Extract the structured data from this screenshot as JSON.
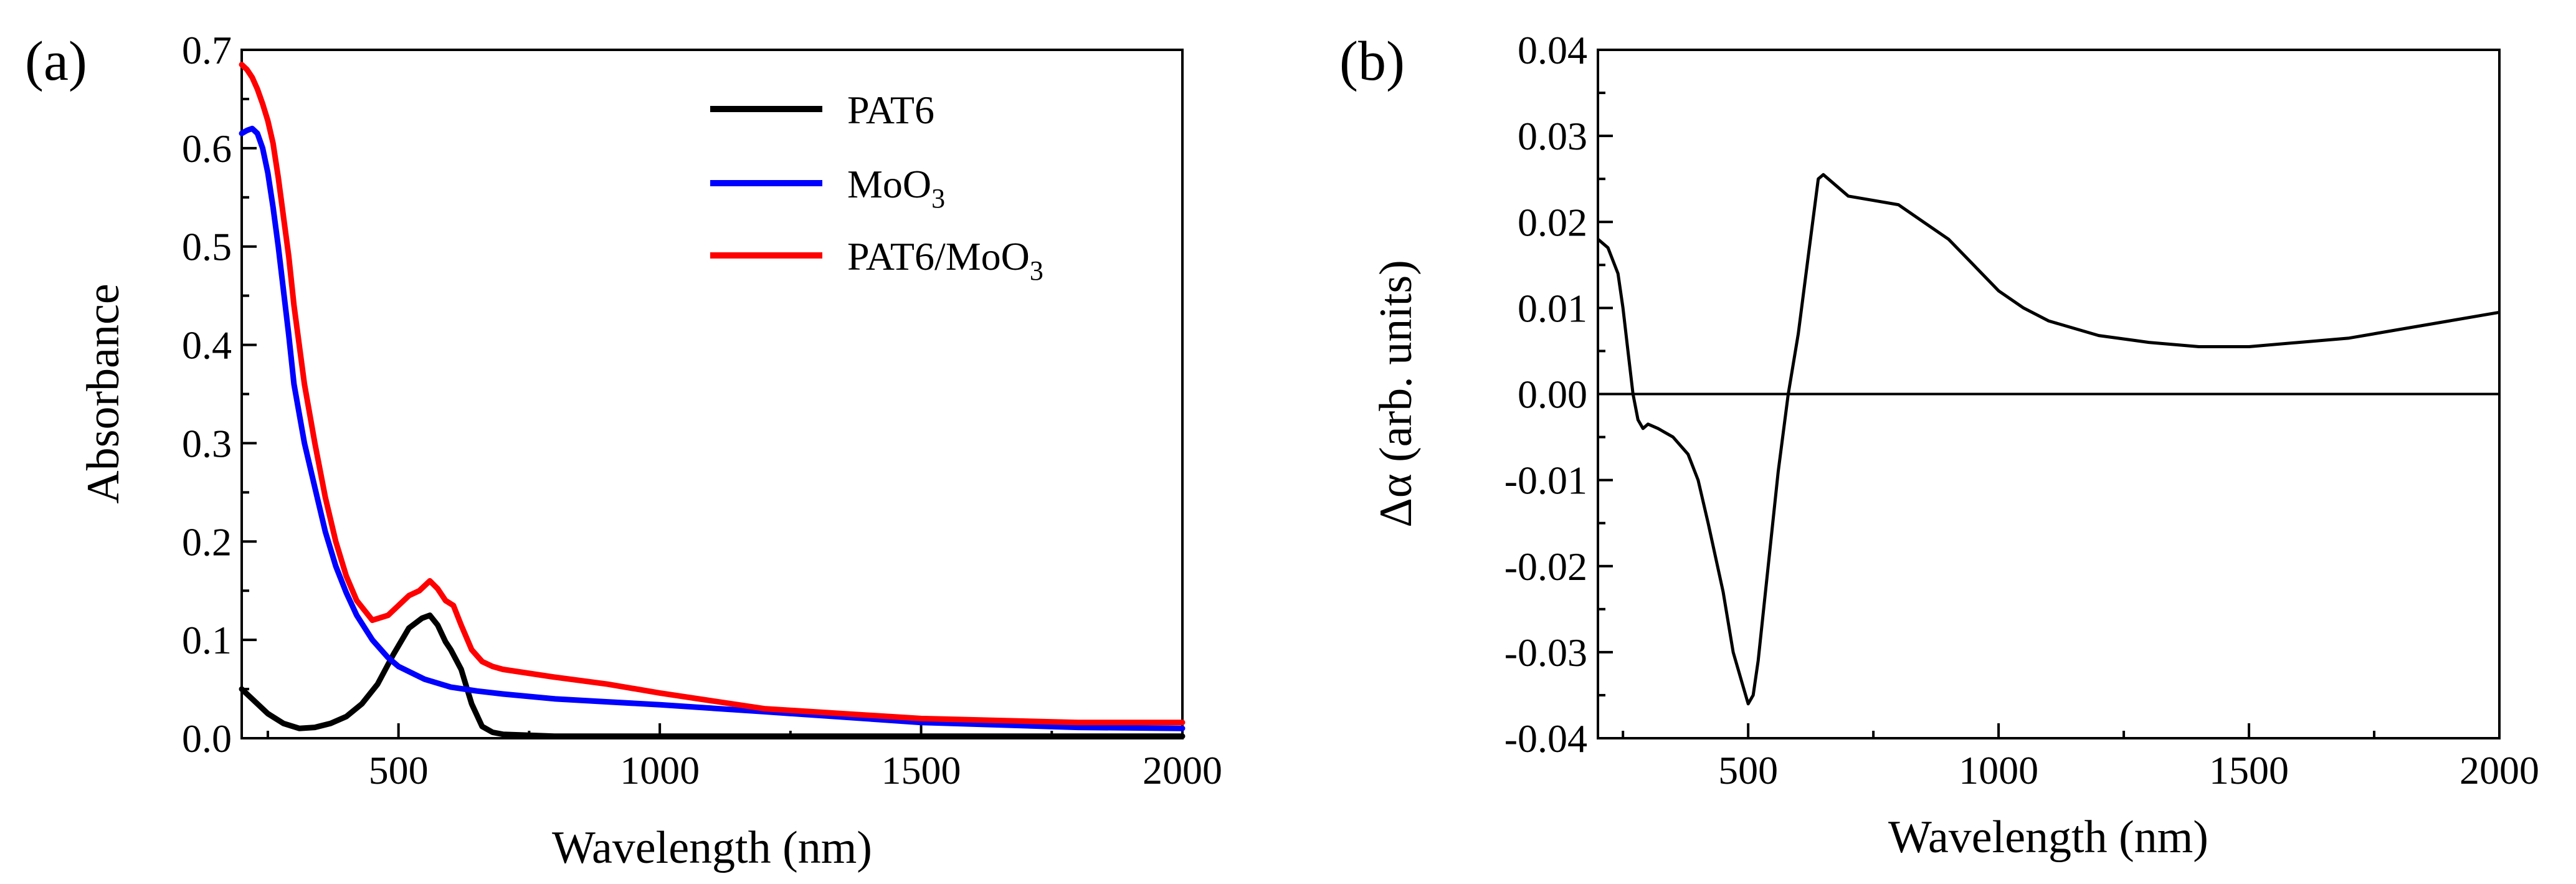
{
  "chart_data": [
    {
      "type": "line",
      "panel_label": "(a)",
      "title": "",
      "xlabel": "Wavelength (nm)",
      "ylabel": "Absorbance",
      "xlim": [
        200,
        2000
      ],
      "ylim": [
        0.0,
        0.7
      ],
      "xticks": [
        "500",
        "1000",
        "1500",
        "2000"
      ],
      "yticks": [
        "0.0",
        "0.1",
        "0.2",
        "0.3",
        "0.4",
        "0.5",
        "0.6",
        "0.7"
      ],
      "legend_position": "top-right",
      "grid": false,
      "series": [
        {
          "name": "PAT6",
          "color": "#000000",
          "x": [
            200,
            220,
            250,
            280,
            310,
            340,
            370,
            400,
            430,
            460,
            490,
            520,
            545,
            560,
            575,
            590,
            600,
            620,
            640,
            660,
            680,
            700,
            750,
            800,
            1000,
            1200,
            1500,
            1800,
            2000
          ],
          "y": [
            0.05,
            0.04,
            0.025,
            0.015,
            0.01,
            0.011,
            0.015,
            0.022,
            0.035,
            0.055,
            0.085,
            0.112,
            0.122,
            0.125,
            0.115,
            0.098,
            0.09,
            0.07,
            0.035,
            0.012,
            0.006,
            0.004,
            0.003,
            0.002,
            0.002,
            0.002,
            0.002,
            0.002,
            0.002
          ]
        },
        {
          "name": "MoO3",
          "name_main": "MoO",
          "name_sub": "3",
          "color": "#0000ff",
          "x": [
            200,
            210,
            220,
            230,
            240,
            250,
            260,
            270,
            280,
            290,
            300,
            320,
            340,
            360,
            380,
            400,
            420,
            450,
            480,
            500,
            550,
            600,
            650,
            700,
            800,
            900,
            1000,
            1200,
            1500,
            1800,
            2000
          ],
          "y": [
            0.615,
            0.618,
            0.62,
            0.615,
            0.6,
            0.575,
            0.54,
            0.5,
            0.455,
            0.41,
            0.36,
            0.3,
            0.255,
            0.21,
            0.175,
            0.148,
            0.125,
            0.1,
            0.082,
            0.073,
            0.06,
            0.052,
            0.048,
            0.045,
            0.04,
            0.037,
            0.034,
            0.027,
            0.016,
            0.011,
            0.01
          ]
        },
        {
          "name": "PAT6/MoO3",
          "name_main": "PAT6/MoO",
          "name_sub": "3",
          "color": "#ff0000",
          "x": [
            200,
            210,
            220,
            230,
            240,
            250,
            260,
            270,
            280,
            290,
            300,
            320,
            340,
            360,
            380,
            400,
            420,
            450,
            480,
            500,
            520,
            540,
            560,
            575,
            590,
            605,
            620,
            640,
            660,
            680,
            700,
            800,
            900,
            1000,
            1200,
            1500,
            1800,
            2000
          ],
          "y": [
            0.685,
            0.68,
            0.672,
            0.66,
            0.645,
            0.628,
            0.605,
            0.57,
            0.53,
            0.49,
            0.44,
            0.36,
            0.3,
            0.245,
            0.2,
            0.165,
            0.14,
            0.12,
            0.125,
            0.135,
            0.145,
            0.15,
            0.16,
            0.152,
            0.14,
            0.135,
            0.115,
            0.09,
            0.078,
            0.073,
            0.07,
            0.062,
            0.055,
            0.046,
            0.03,
            0.02,
            0.016,
            0.016
          ]
        }
      ]
    },
    {
      "type": "line",
      "panel_label": "(b)",
      "title": "",
      "xlabel": "Wavelength (nm)",
      "ylabel": "Δα (arb. units)",
      "xlim": [
        200,
        2000
      ],
      "ylim": [
        -0.04,
        0.04
      ],
      "xticks": [
        "500",
        "1000",
        "1500",
        "2000"
      ],
      "yticks": [
        "0.04",
        "0.03",
        "0.02",
        "0.01",
        "0.00",
        "-0.01",
        "-0.02",
        "-0.03",
        "-0.04"
      ],
      "zero_line": true,
      "grid": false,
      "series": [
        {
          "name": "",
          "color": "#000000",
          "x": [
            200,
            220,
            240,
            250,
            260,
            270,
            280,
            290,
            300,
            320,
            350,
            380,
            400,
            420,
            450,
            470,
            490,
            500,
            510,
            520,
            540,
            560,
            580,
            600,
            620,
            640,
            650,
            700,
            750,
            800,
            850,
            900,
            950,
            1000,
            1050,
            1100,
            1200,
            1300,
            1400,
            1500,
            1600,
            1700,
            1800,
            1900,
            2000
          ],
          "y": [
            0.018,
            0.017,
            0.014,
            0.01,
            0.005,
            0.0,
            -0.003,
            -0.004,
            -0.0035,
            -0.004,
            -0.005,
            -0.007,
            -0.01,
            -0.015,
            -0.023,
            -0.03,
            -0.034,
            -0.036,
            -0.035,
            -0.031,
            -0.02,
            -0.009,
            0.0,
            0.007,
            0.016,
            0.025,
            0.0255,
            0.023,
            0.0225,
            0.022,
            0.02,
            0.018,
            0.015,
            0.012,
            0.01,
            0.0085,
            0.0068,
            0.006,
            0.0055,
            0.0055,
            0.006,
            0.0065,
            0.0075,
            0.0085,
            0.0095
          ]
        }
      ]
    }
  ]
}
